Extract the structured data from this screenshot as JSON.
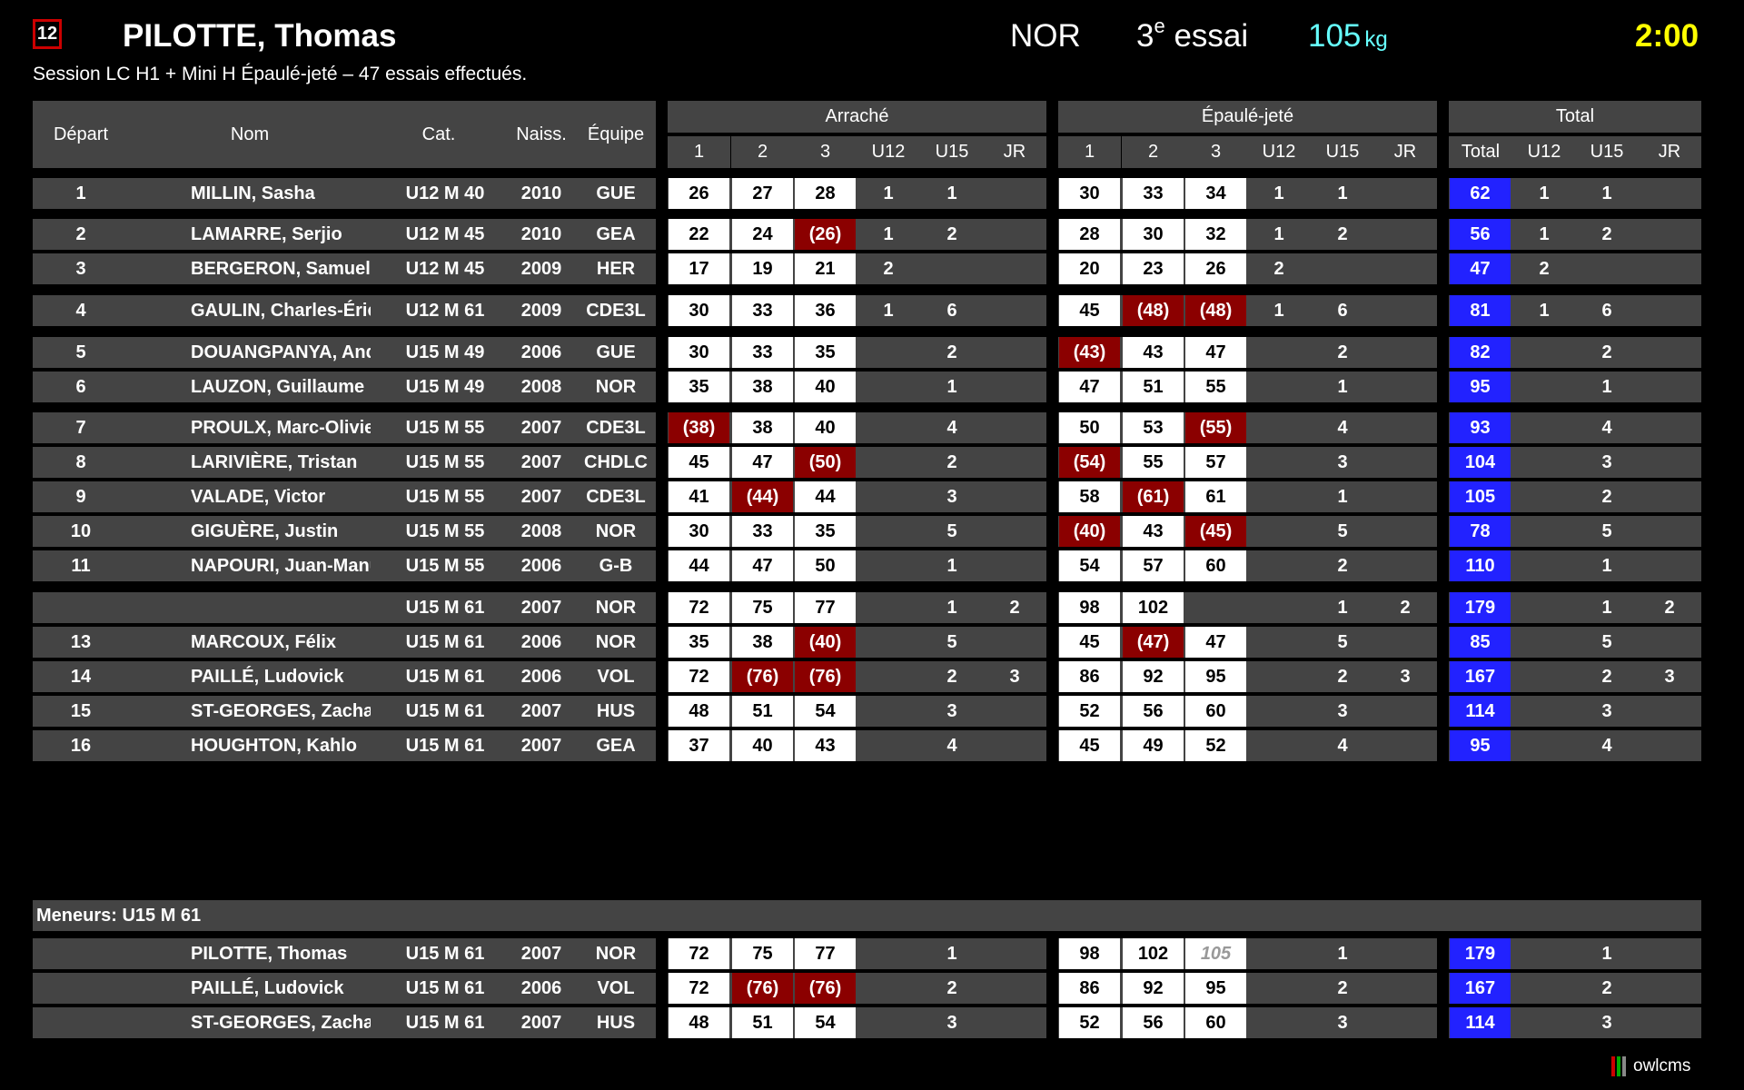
{
  "current": {
    "start_number": "12",
    "name": "PILOTTE, Thomas",
    "team": "NOR",
    "attempt_num": "3",
    "attempt_sup": "e",
    "attempt_word": "essai",
    "weight": "105",
    "weight_unit": "kg",
    "timer": "2:00"
  },
  "session_info": "Session LC H1 + Mini H Épaulé-jeté – 47 essais effectués.",
  "headers": {
    "start": "Départ",
    "name": "Nom",
    "cat": "Cat.",
    "birth": "Naiss.",
    "team": "Équipe",
    "snatch": "Arraché",
    "cj": "Épaulé-jeté",
    "total_group": "Total",
    "a1": "1",
    "a2": "2",
    "a3": "3",
    "u12": "U12",
    "u15": "U15",
    "jr": "JR",
    "total": "Total"
  },
  "colors": {
    "fail": "#8b0000",
    "total": "#2222ff",
    "grey": "#444444",
    "timer": "#ffff00",
    "weight": "#66ffff"
  },
  "athletes": [
    {
      "start": "1",
      "name": "MILLIN, Sasha",
      "cat": "U12 M 40",
      "birth": "2010",
      "team": "GUE",
      "sn": [
        "26",
        "27",
        "28"
      ],
      "snf": [
        0,
        0,
        0
      ],
      "sn_r": [
        "1",
        "1",
        ""
      ],
      "cj": [
        "30",
        "33",
        "34"
      ],
      "cjf": [
        0,
        0,
        0
      ],
      "cj_r": [
        "1",
        "1",
        ""
      ],
      "total": "62",
      "t_r": [
        "1",
        "1",
        ""
      ]
    },
    {
      "start": "2",
      "name": "LAMARRE, Serjio",
      "cat": "U12 M 45",
      "birth": "2010",
      "team": "GEA",
      "sn": [
        "22",
        "24",
        "(26)"
      ],
      "snf": [
        0,
        0,
        1
      ],
      "sn_r": [
        "1",
        "2",
        ""
      ],
      "cj": [
        "28",
        "30",
        "32"
      ],
      "cjf": [
        0,
        0,
        0
      ],
      "cj_r": [
        "1",
        "2",
        ""
      ],
      "total": "56",
      "t_r": [
        "1",
        "2",
        ""
      ]
    },
    {
      "start": "3",
      "name": "BERGERON, Samuel",
      "cat": "U12 M 45",
      "birth": "2009",
      "team": "HER",
      "sn": [
        "17",
        "19",
        "21"
      ],
      "snf": [
        0,
        0,
        0
      ],
      "sn_r": [
        "2",
        "",
        ""
      ],
      "cj": [
        "20",
        "23",
        "26"
      ],
      "cjf": [
        0,
        0,
        0
      ],
      "cj_r": [
        "2",
        "",
        ""
      ],
      "total": "47",
      "t_r": [
        "2",
        "",
        ""
      ]
    },
    {
      "start": "4",
      "name": "GAULIN, Charles-Éric",
      "cat": "U12 M 61",
      "birth": "2009",
      "team": "CDE3L",
      "sn": [
        "30",
        "33",
        "36"
      ],
      "snf": [
        0,
        0,
        0
      ],
      "sn_r": [
        "1",
        "6",
        ""
      ],
      "cj": [
        "45",
        "(48)",
        "(48)"
      ],
      "cjf": [
        0,
        1,
        1
      ],
      "cj_r": [
        "1",
        "6",
        ""
      ],
      "total": "81",
      "t_r": [
        "1",
        "6",
        ""
      ]
    },
    {
      "start": "5",
      "name": "DOUANGPANYA, Andy",
      "cat": "U15 M 49",
      "birth": "2006",
      "team": "GUE",
      "sn": [
        "30",
        "33",
        "35"
      ],
      "snf": [
        0,
        0,
        0
      ],
      "sn_r": [
        "",
        "2",
        ""
      ],
      "cj": [
        "(43)",
        "43",
        "47"
      ],
      "cjf": [
        1,
        0,
        0
      ],
      "cj_r": [
        "",
        "2",
        ""
      ],
      "total": "82",
      "t_r": [
        "",
        "2",
        ""
      ]
    },
    {
      "start": "6",
      "name": "LAUZON, Guillaume",
      "cat": "U15 M 49",
      "birth": "2008",
      "team": "NOR",
      "sn": [
        "35",
        "38",
        "40"
      ],
      "snf": [
        0,
        0,
        0
      ],
      "sn_r": [
        "",
        "1",
        ""
      ],
      "cj": [
        "47",
        "51",
        "55"
      ],
      "cjf": [
        0,
        0,
        0
      ],
      "cj_r": [
        "",
        "1",
        ""
      ],
      "total": "95",
      "t_r": [
        "",
        "1",
        ""
      ]
    },
    {
      "start": "7",
      "name": "PROULX, Marc-Olivier",
      "cat": "U15 M 55",
      "birth": "2007",
      "team": "CDE3L",
      "sn": [
        "(38)",
        "38",
        "40"
      ],
      "snf": [
        1,
        0,
        0
      ],
      "sn_r": [
        "",
        "4",
        ""
      ],
      "cj": [
        "50",
        "53",
        "(55)"
      ],
      "cjf": [
        0,
        0,
        1
      ],
      "cj_r": [
        "",
        "4",
        ""
      ],
      "total": "93",
      "t_r": [
        "",
        "4",
        ""
      ]
    },
    {
      "start": "8",
      "name": "LARIVIÈRE, Tristan",
      "cat": "U15 M 55",
      "birth": "2007",
      "team": "CHDLC",
      "sn": [
        "45",
        "47",
        "(50)"
      ],
      "snf": [
        0,
        0,
        1
      ],
      "sn_r": [
        "",
        "2",
        ""
      ],
      "cj": [
        "(54)",
        "55",
        "57"
      ],
      "cjf": [
        1,
        0,
        0
      ],
      "cj_r": [
        "",
        "3",
        ""
      ],
      "total": "104",
      "t_r": [
        "",
        "3",
        ""
      ]
    },
    {
      "start": "9",
      "name": "VALADE, Victor",
      "cat": "U15 M 55",
      "birth": "2007",
      "team": "CDE3L",
      "sn": [
        "41",
        "(44)",
        "44"
      ],
      "snf": [
        0,
        1,
        0
      ],
      "sn_r": [
        "",
        "3",
        ""
      ],
      "cj": [
        "58",
        "(61)",
        "61"
      ],
      "cjf": [
        0,
        1,
        0
      ],
      "cj_r": [
        "",
        "1",
        ""
      ],
      "total": "105",
      "t_r": [
        "",
        "2",
        ""
      ]
    },
    {
      "start": "10",
      "name": "GIGUÈRE, Justin",
      "cat": "U15 M 55",
      "birth": "2008",
      "team": "NOR",
      "sn": [
        "30",
        "33",
        "35"
      ],
      "snf": [
        0,
        0,
        0
      ],
      "sn_r": [
        "",
        "5",
        ""
      ],
      "cj": [
        "(40)",
        "43",
        "(45)"
      ],
      "cjf": [
        1,
        0,
        1
      ],
      "cj_r": [
        "",
        "5",
        ""
      ],
      "total": "78",
      "t_r": [
        "",
        "5",
        ""
      ]
    },
    {
      "start": "11",
      "name": "NAPOURI, Juan-Manuel",
      "cat": "U15 M 55",
      "birth": "2006",
      "team": "G-B",
      "sn": [
        "44",
        "47",
        "50"
      ],
      "snf": [
        0,
        0,
        0
      ],
      "sn_r": [
        "",
        "1",
        ""
      ],
      "cj": [
        "54",
        "57",
        "60"
      ],
      "cjf": [
        0,
        0,
        0
      ],
      "cj_r": [
        "",
        "2",
        ""
      ],
      "total": "110",
      "t_r": [
        "",
        "1",
        ""
      ]
    },
    {
      "start": "",
      "name": "",
      "cat": "U15 M 61",
      "birth": "2007",
      "team": "NOR",
      "sn": [
        "72",
        "75",
        "77"
      ],
      "snf": [
        0,
        0,
        0
      ],
      "sn_r": [
        "",
        "1",
        "2"
      ],
      "cj": [
        "98",
        "102",
        ""
      ],
      "cjf": [
        0,
        0,
        0
      ],
      "cj_r": [
        "",
        "1",
        "2"
      ],
      "total": "179",
      "t_r": [
        "",
        "1",
        "2"
      ],
      "cj3_blank": true
    },
    {
      "start": "13",
      "name": "MARCOUX, Félix",
      "cat": "U15 M 61",
      "birth": "2006",
      "team": "NOR",
      "sn": [
        "35",
        "38",
        "(40)"
      ],
      "snf": [
        0,
        0,
        1
      ],
      "sn_r": [
        "",
        "5",
        ""
      ],
      "cj": [
        "45",
        "(47)",
        "47"
      ],
      "cjf": [
        0,
        1,
        0
      ],
      "cj_r": [
        "",
        "5",
        ""
      ],
      "total": "85",
      "t_r": [
        "",
        "5",
        ""
      ]
    },
    {
      "start": "14",
      "name": "PAILLÉ, Ludovick",
      "cat": "U15 M 61",
      "birth": "2006",
      "team": "VOL",
      "sn": [
        "72",
        "(76)",
        "(76)"
      ],
      "snf": [
        0,
        1,
        1
      ],
      "sn_r": [
        "",
        "2",
        "3"
      ],
      "cj": [
        "86",
        "92",
        "95"
      ],
      "cjf": [
        0,
        0,
        0
      ],
      "cj_r": [
        "",
        "2",
        "3"
      ],
      "total": "167",
      "t_r": [
        "",
        "2",
        "3"
      ]
    },
    {
      "start": "15",
      "name": "ST-GEORGES, Zachary",
      "cat": "U15 M 61",
      "birth": "2007",
      "team": "HUS",
      "sn": [
        "48",
        "51",
        "54"
      ],
      "snf": [
        0,
        0,
        0
      ],
      "sn_r": [
        "",
        "3",
        ""
      ],
      "cj": [
        "52",
        "56",
        "60"
      ],
      "cjf": [
        0,
        0,
        0
      ],
      "cj_r": [
        "",
        "3",
        ""
      ],
      "total": "114",
      "t_r": [
        "",
        "3",
        ""
      ]
    },
    {
      "start": "16",
      "name": "HOUGHTON, Kahlo",
      "cat": "U15 M 61",
      "birth": "2007",
      "team": "GEA",
      "sn": [
        "37",
        "40",
        "43"
      ],
      "snf": [
        0,
        0,
        0
      ],
      "sn_r": [
        "",
        "4",
        ""
      ],
      "cj": [
        "45",
        "49",
        "52"
      ],
      "cjf": [
        0,
        0,
        0
      ],
      "cj_r": [
        "",
        "4",
        ""
      ],
      "total": "95",
      "t_r": [
        "",
        "4",
        ""
      ]
    }
  ],
  "leaders_title": "Meneurs: U15 M 61",
  "leaders": [
    {
      "start": "",
      "name": "PILOTTE, Thomas",
      "cat": "U15 M 61",
      "birth": "2007",
      "team": "NOR",
      "sn": [
        "72",
        "75",
        "77"
      ],
      "snf": [
        0,
        0,
        0
      ],
      "sn_r": [
        "",
        "1",
        ""
      ],
      "cj": [
        "98",
        "102",
        "105"
      ],
      "cjf": [
        0,
        0,
        2
      ],
      "cj_r": [
        "",
        "1",
        ""
      ],
      "total": "179",
      "t_r": [
        "",
        "1",
        ""
      ],
      "cj3_blank": true
    },
    {
      "start": "",
      "name": "PAILLÉ, Ludovick",
      "cat": "U15 M 61",
      "birth": "2006",
      "team": "VOL",
      "sn": [
        "72",
        "(76)",
        "(76)"
      ],
      "snf": [
        0,
        1,
        1
      ],
      "sn_r": [
        "",
        "2",
        ""
      ],
      "cj": [
        "86",
        "92",
        "95"
      ],
      "cjf": [
        0,
        0,
        0
      ],
      "cj_r": [
        "",
        "2",
        ""
      ],
      "total": "167",
      "t_r": [
        "",
        "2",
        ""
      ]
    },
    {
      "start": "",
      "name": "ST-GEORGES, Zachary",
      "cat": "U15 M 61",
      "birth": "2007",
      "team": "HUS",
      "sn": [
        "48",
        "51",
        "54"
      ],
      "snf": [
        0,
        0,
        0
      ],
      "sn_r": [
        "",
        "3",
        ""
      ],
      "cj": [
        "52",
        "56",
        "60"
      ],
      "cjf": [
        0,
        0,
        0
      ],
      "cj_r": [
        "",
        "3",
        ""
      ],
      "total": "114",
      "t_r": [
        "",
        "3",
        ""
      ]
    }
  ],
  "logo_text": "owlcms"
}
